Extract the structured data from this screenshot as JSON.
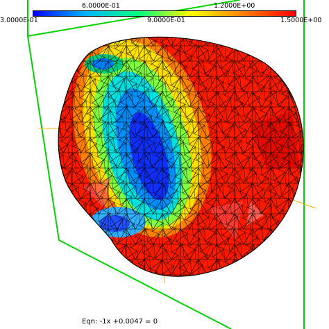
{
  "colorbar": {
    "top_labels": [
      "6.0000E-01",
      "1.2000E+00"
    ],
    "bottom_labels": [
      "3.0000E-01",
      "9.0000E-01",
      "1.5000E+00"
    ],
    "colors": [
      "#0000ff",
      "#00b4ff",
      "#00ff80",
      "#ffff00",
      "#ff8000",
      "#ff0000"
    ]
  },
  "equation": {
    "label": "Eqn:",
    "text": "-1x +0.0047 = 0"
  },
  "scene": {
    "box_color": "#00d200",
    "axis_color": "#ffb400",
    "mesh_line_color": "#000000"
  }
}
